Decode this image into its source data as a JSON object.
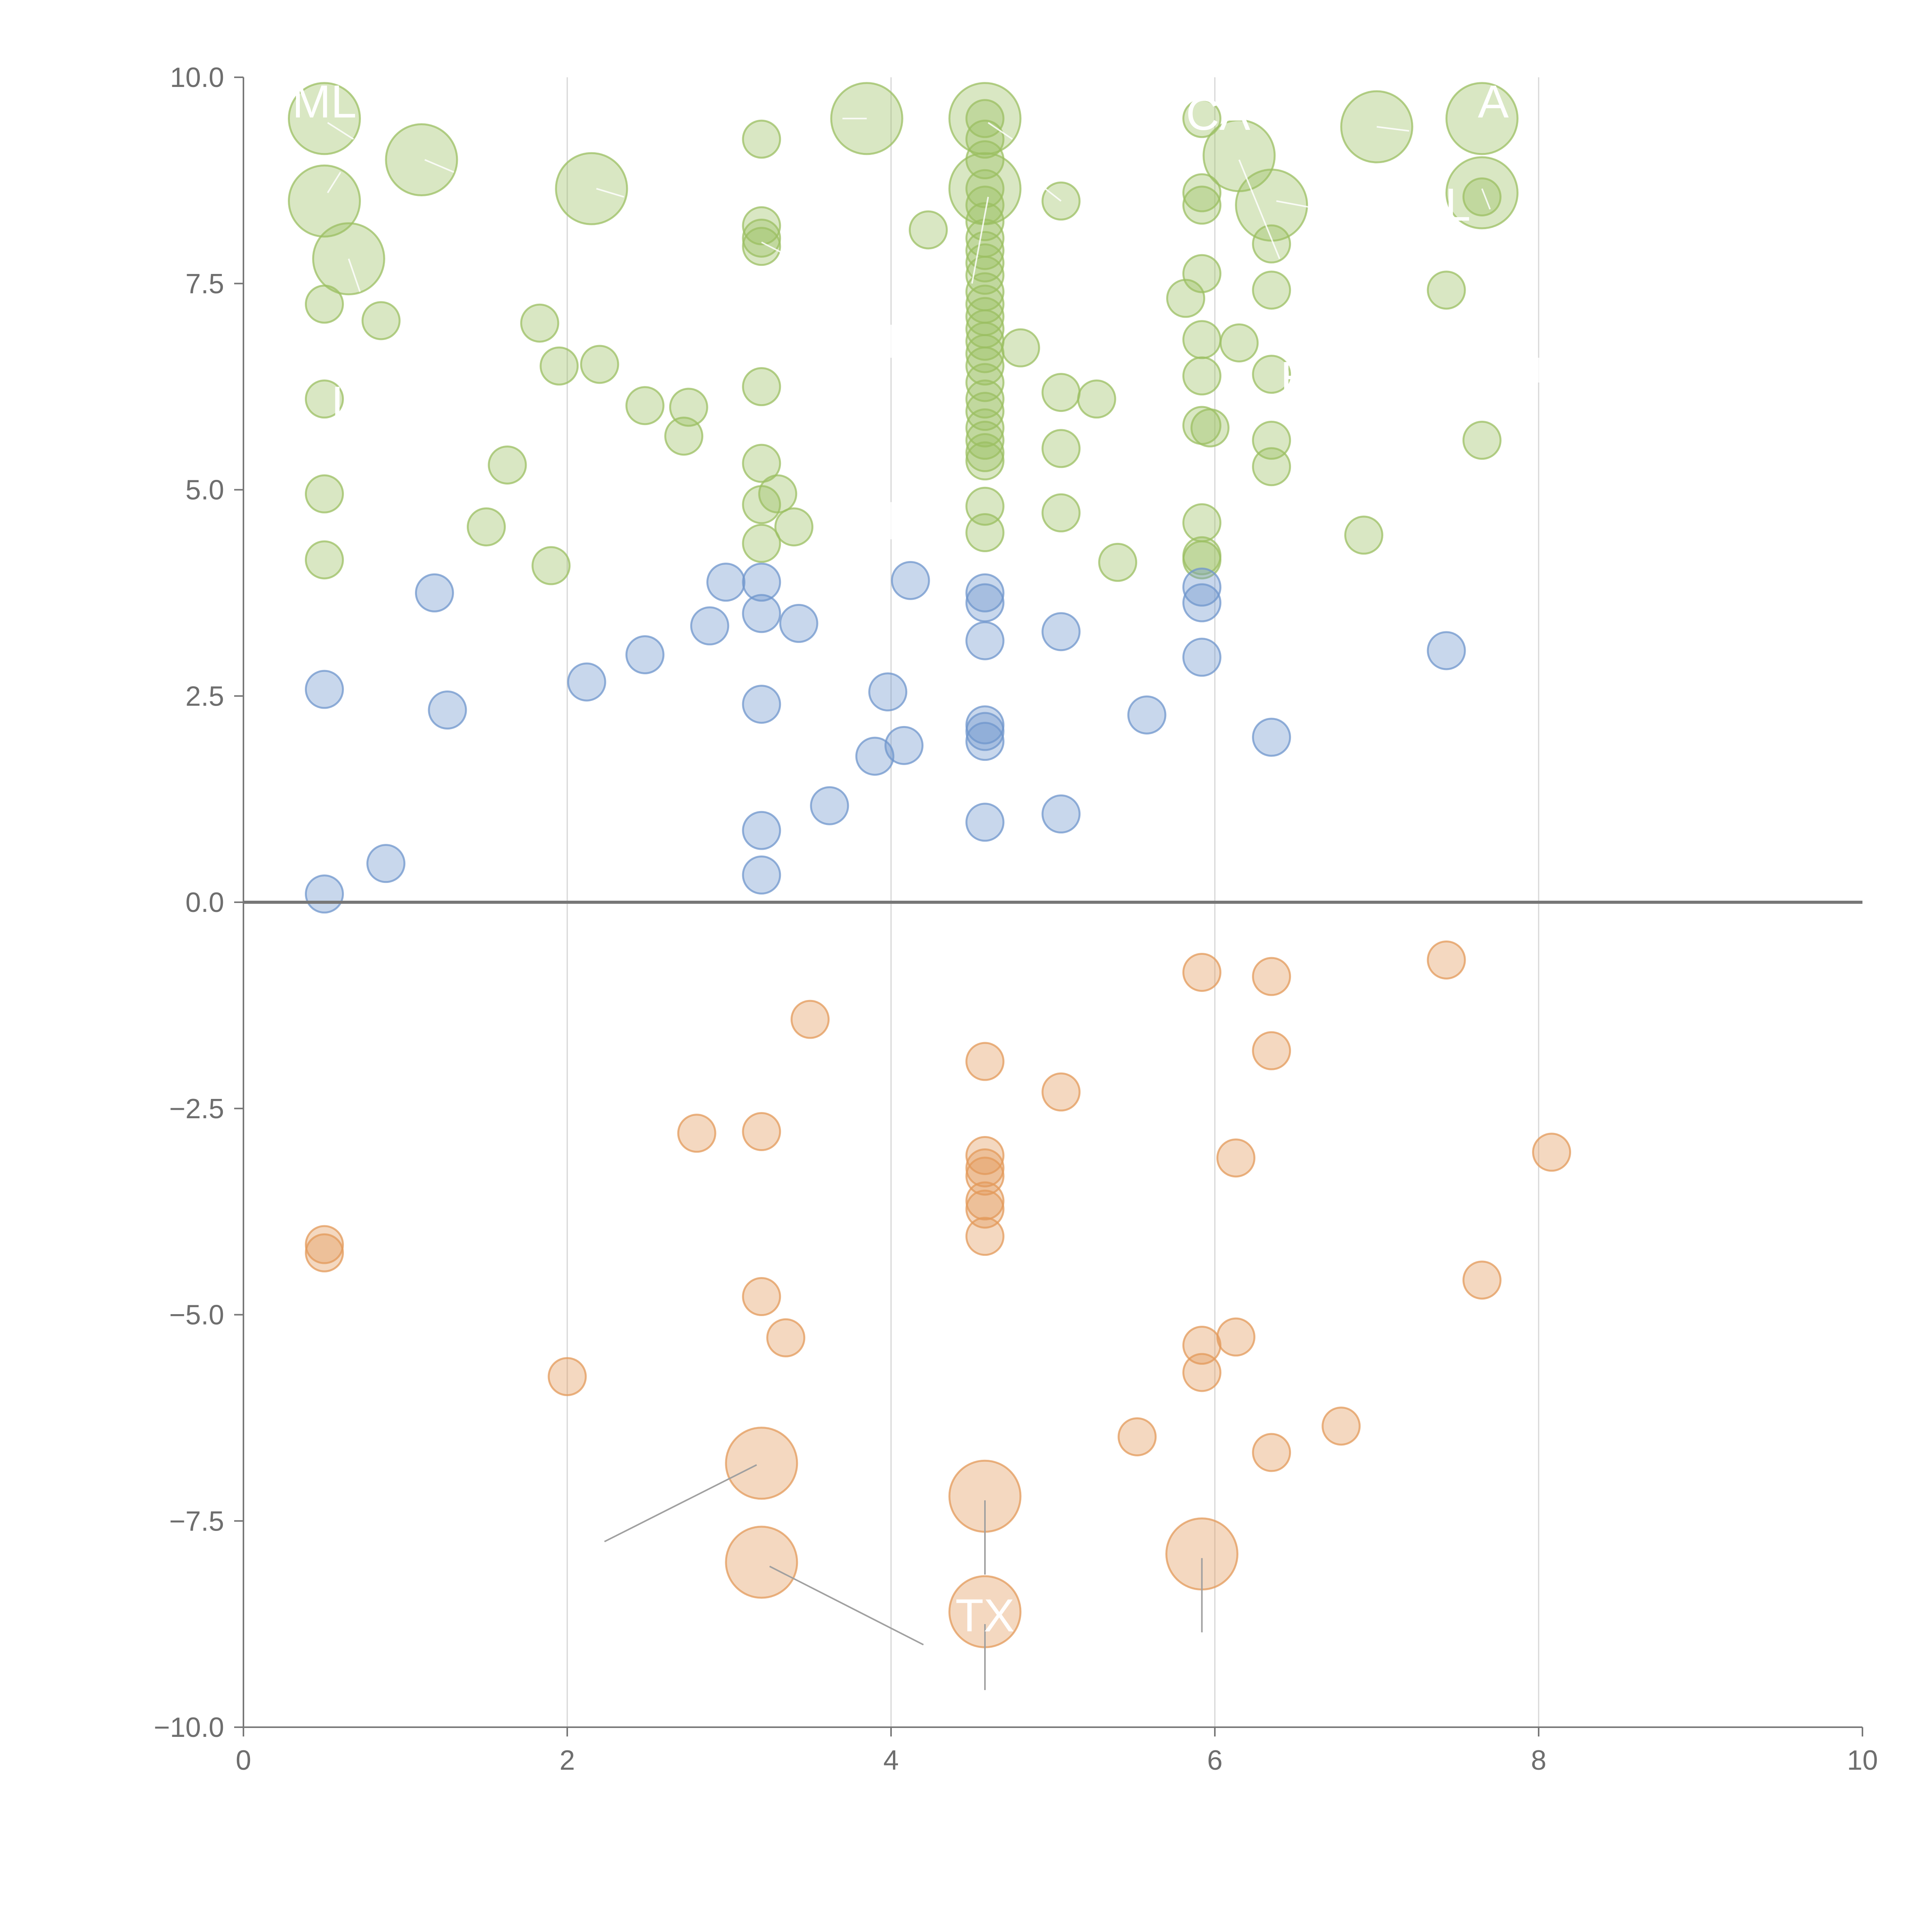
{
  "chart_data": {
    "type": "scatter",
    "subtype": "bubble",
    "title": "",
    "xlabel": "",
    "ylabel": "",
    "xlim": [
      0,
      10
    ],
    "ylim": [
      -10,
      10
    ],
    "x_ticks": [
      0,
      2,
      4,
      6,
      8,
      10
    ],
    "x_tick_labels": [
      "0",
      "2",
      "4",
      "6",
      "8",
      "10"
    ],
    "y_ticks": [
      -10,
      -7.5,
      -5,
      -2.5,
      0,
      2.5,
      5,
      7.5,
      10
    ],
    "y_tick_labels": [
      "−10.0",
      "−7.5",
      "−5.0",
      "−2.5",
      "0.0",
      "2.5",
      "5.0",
      "7.5",
      "10.0"
    ],
    "vertical_grid_at": [
      2,
      4,
      6,
      8
    ],
    "zero_line": 0,
    "colors": {
      "green": "#9bbf62",
      "blue": "#6f95cc",
      "orange": "#e3995a",
      "axis": "#777777",
      "grid": "#d6d6d6",
      "label": "#ffffff"
    },
    "series": [
      {
        "name": "green",
        "color": "#9bbf62",
        "points": [
          {
            "x": 0.5,
            "y": 9.5,
            "s": 2
          },
          {
            "x": 0.5,
            "y": 8.5,
            "s": 2
          },
          {
            "x": 0.65,
            "y": 7.8,
            "s": 2
          },
          {
            "x": 1.1,
            "y": 9.0,
            "s": 2
          },
          {
            "x": 2.15,
            "y": 8.65,
            "s": 2
          },
          {
            "x": 3.85,
            "y": 9.5,
            "s": 2
          },
          {
            "x": 4.58,
            "y": 9.5,
            "s": 2
          },
          {
            "x": 4.58,
            "y": 8.65,
            "s": 2
          },
          {
            "x": 6.15,
            "y": 9.05,
            "s": 2
          },
          {
            "x": 6.35,
            "y": 8.45,
            "s": 2
          },
          {
            "x": 7.0,
            "y": 9.4,
            "s": 2
          },
          {
            "x": 7.65,
            "y": 9.5,
            "s": 2
          },
          {
            "x": 7.65,
            "y": 8.6,
            "s": 2
          },
          {
            "x": 0.5,
            "y": 7.25,
            "s": 1
          },
          {
            "x": 0.85,
            "y": 7.05,
            "s": 1
          },
          {
            "x": 0.5,
            "y": 6.1,
            "s": 1
          },
          {
            "x": 0.5,
            "y": 4.95,
            "s": 1
          },
          {
            "x": 0.5,
            "y": 4.15,
            "s": 1
          },
          {
            "x": 1.5,
            "y": 4.55,
            "s": 1
          },
          {
            "x": 1.63,
            "y": 5.3,
            "s": 1
          },
          {
            "x": 1.83,
            "y": 7.02,
            "s": 1
          },
          {
            "x": 1.9,
            "y": 4.08,
            "s": 1
          },
          {
            "x": 1.95,
            "y": 6.5,
            "s": 1
          },
          {
            "x": 2.2,
            "y": 6.52,
            "s": 1
          },
          {
            "x": 2.48,
            "y": 6.02,
            "s": 1
          },
          {
            "x": 2.72,
            "y": 5.65,
            "s": 1
          },
          {
            "x": 2.75,
            "y": 6.0,
            "s": 1
          },
          {
            "x": 3.2,
            "y": 9.25,
            "s": 1
          },
          {
            "x": 3.2,
            "y": 8.2,
            "s": 1
          },
          {
            "x": 3.2,
            "y": 8.05,
            "s": 1
          },
          {
            "x": 3.2,
            "y": 7.95,
            "s": 1
          },
          {
            "x": 3.2,
            "y": 6.25,
            "s": 1
          },
          {
            "x": 3.2,
            "y": 5.32,
            "s": 1
          },
          {
            "x": 3.2,
            "y": 4.82,
            "s": 1
          },
          {
            "x": 3.2,
            "y": 4.35,
            "s": 1
          },
          {
            "x": 3.3,
            "y": 4.95,
            "s": 1
          },
          {
            "x": 3.4,
            "y": 4.55,
            "s": 1
          },
          {
            "x": 4.23,
            "y": 8.15,
            "s": 1
          },
          {
            "x": 4.58,
            "y": 9.5,
            "s": 1
          },
          {
            "x": 4.58,
            "y": 9.25,
            "s": 1
          },
          {
            "x": 4.58,
            "y": 9.0,
            "s": 1
          },
          {
            "x": 4.58,
            "y": 8.65,
            "s": 1
          },
          {
            "x": 4.58,
            "y": 8.45,
            "s": 1
          },
          {
            "x": 4.58,
            "y": 8.25,
            "s": 1
          },
          {
            "x": 4.58,
            "y": 8.05,
            "s": 1
          },
          {
            "x": 4.58,
            "y": 7.9,
            "s": 1
          },
          {
            "x": 4.58,
            "y": 7.75,
            "s": 1
          },
          {
            "x": 4.58,
            "y": 7.6,
            "s": 1
          },
          {
            "x": 4.58,
            "y": 7.4,
            "s": 1
          },
          {
            "x": 4.58,
            "y": 7.25,
            "s": 1
          },
          {
            "x": 4.58,
            "y": 7.1,
            "s": 1
          },
          {
            "x": 4.58,
            "y": 6.95,
            "s": 1
          },
          {
            "x": 4.58,
            "y": 6.8,
            "s": 1
          },
          {
            "x": 4.58,
            "y": 6.65,
            "s": 1
          },
          {
            "x": 4.58,
            "y": 6.5,
            "s": 1
          },
          {
            "x": 4.58,
            "y": 6.3,
            "s": 1
          },
          {
            "x": 4.58,
            "y": 6.1,
            "s": 1
          },
          {
            "x": 4.58,
            "y": 5.95,
            "s": 1
          },
          {
            "x": 4.58,
            "y": 5.75,
            "s": 1
          },
          {
            "x": 4.58,
            "y": 5.6,
            "s": 1
          },
          {
            "x": 4.58,
            "y": 5.45,
            "s": 1
          },
          {
            "x": 4.58,
            "y": 5.35,
            "s": 1
          },
          {
            "x": 4.58,
            "y": 4.8,
            "s": 1
          },
          {
            "x": 4.58,
            "y": 4.48,
            "s": 1
          },
          {
            "x": 4.8,
            "y": 6.72,
            "s": 1
          },
          {
            "x": 5.05,
            "y": 8.5,
            "s": 1
          },
          {
            "x": 5.05,
            "y": 6.18,
            "s": 1
          },
          {
            "x": 5.05,
            "y": 5.5,
            "s": 1
          },
          {
            "x": 5.05,
            "y": 4.72,
            "s": 1
          },
          {
            "x": 5.27,
            "y": 6.1,
            "s": 1
          },
          {
            "x": 5.4,
            "y": 4.12,
            "s": 1
          },
          {
            "x": 5.82,
            "y": 7.32,
            "s": 1
          },
          {
            "x": 5.92,
            "y": 9.5,
            "s": 1
          },
          {
            "x": 5.92,
            "y": 8.6,
            "s": 1
          },
          {
            "x": 5.92,
            "y": 8.45,
            "s": 1
          },
          {
            "x": 5.92,
            "y": 7.62,
            "s": 1
          },
          {
            "x": 5.92,
            "y": 6.82,
            "s": 1
          },
          {
            "x": 5.92,
            "y": 6.38,
            "s": 1
          },
          {
            "x": 5.92,
            "y": 5.78,
            "s": 1
          },
          {
            "x": 5.97,
            "y": 5.75,
            "s": 1
          },
          {
            "x": 5.92,
            "y": 4.6,
            "s": 1
          },
          {
            "x": 5.92,
            "y": 4.2,
            "s": 1
          },
          {
            "x": 5.92,
            "y": 4.15,
            "s": 1
          },
          {
            "x": 6.15,
            "y": 6.78,
            "s": 1
          },
          {
            "x": 6.35,
            "y": 7.98,
            "s": 1
          },
          {
            "x": 6.35,
            "y": 7.42,
            "s": 1
          },
          {
            "x": 6.35,
            "y": 6.4,
            "s": 1
          },
          {
            "x": 6.35,
            "y": 5.6,
            "s": 1
          },
          {
            "x": 6.35,
            "y": 5.28,
            "s": 1
          },
          {
            "x": 6.92,
            "y": 4.45,
            "s": 1
          },
          {
            "x": 7.43,
            "y": 7.42,
            "s": 1
          },
          {
            "x": 7.65,
            "y": 8.55,
            "s": 1
          },
          {
            "x": 7.65,
            "y": 5.6,
            "s": 1
          }
        ]
      },
      {
        "name": "blue",
        "color": "#6f95cc",
        "points": [
          {
            "x": 0.5,
            "y": 0.1,
            "s": 1
          },
          {
            "x": 0.88,
            "y": 0.47,
            "s": 1
          },
          {
            "x": 0.5,
            "y": 2.58,
            "s": 1
          },
          {
            "x": 1.18,
            "y": 3.75,
            "s": 1
          },
          {
            "x": 1.26,
            "y": 2.33,
            "s": 1
          },
          {
            "x": 2.12,
            "y": 2.67,
            "s": 1
          },
          {
            "x": 2.48,
            "y": 3.0,
            "s": 1
          },
          {
            "x": 2.88,
            "y": 3.35,
            "s": 1
          },
          {
            "x": 2.98,
            "y": 3.88,
            "s": 1
          },
          {
            "x": 3.2,
            "y": 3.88,
            "s": 1
          },
          {
            "x": 3.2,
            "y": 3.5,
            "s": 1
          },
          {
            "x": 3.2,
            "y": 2.4,
            "s": 1
          },
          {
            "x": 3.2,
            "y": 0.87,
            "s": 1
          },
          {
            "x": 3.2,
            "y": 0.33,
            "s": 1
          },
          {
            "x": 3.43,
            "y": 3.38,
            "s": 1
          },
          {
            "x": 3.62,
            "y": 1.17,
            "s": 1
          },
          {
            "x": 3.9,
            "y": 1.77,
            "s": 1
          },
          {
            "x": 3.98,
            "y": 2.55,
            "s": 1
          },
          {
            "x": 4.08,
            "y": 1.9,
            "s": 1
          },
          {
            "x": 4.12,
            "y": 3.9,
            "s": 1
          },
          {
            "x": 4.58,
            "y": 3.75,
            "s": 1
          },
          {
            "x": 4.58,
            "y": 3.63,
            "s": 1
          },
          {
            "x": 4.58,
            "y": 3.17,
            "s": 1
          },
          {
            "x": 4.58,
            "y": 2.15,
            "s": 1
          },
          {
            "x": 4.58,
            "y": 2.07,
            "s": 1
          },
          {
            "x": 4.58,
            "y": 1.95,
            "s": 1
          },
          {
            "x": 4.58,
            "y": 0.97,
            "s": 1
          },
          {
            "x": 5.05,
            "y": 3.28,
            "s": 1
          },
          {
            "x": 5.05,
            "y": 1.07,
            "s": 1
          },
          {
            "x": 5.58,
            "y": 2.27,
            "s": 1
          },
          {
            "x": 5.92,
            "y": 3.82,
            "s": 1
          },
          {
            "x": 5.92,
            "y": 3.63,
            "s": 1
          },
          {
            "x": 5.92,
            "y": 2.97,
            "s": 1
          },
          {
            "x": 6.35,
            "y": 2.0,
            "s": 1
          },
          {
            "x": 7.43,
            "y": 3.05,
            "s": 1
          }
        ]
      },
      {
        "name": "orange",
        "color": "#e3995a",
        "points": [
          {
            "x": 0.5,
            "y": -4.15,
            "s": 1
          },
          {
            "x": 0.5,
            "y": -4.25,
            "s": 1
          },
          {
            "x": 2.0,
            "y": -5.75,
            "s": 1
          },
          {
            "x": 2.8,
            "y": -2.8,
            "s": 1
          },
          {
            "x": 3.2,
            "y": -2.78,
            "s": 1
          },
          {
            "x": 3.2,
            "y": -4.78,
            "s": 1
          },
          {
            "x": 3.35,
            "y": -5.28,
            "s": 1
          },
          {
            "x": 3.5,
            "y": -1.42,
            "s": 1
          },
          {
            "x": 4.58,
            "y": -1.93,
            "s": 1
          },
          {
            "x": 4.58,
            "y": -3.07,
            "s": 1
          },
          {
            "x": 4.58,
            "y": -3.22,
            "s": 1
          },
          {
            "x": 4.58,
            "y": -3.32,
            "s": 1
          },
          {
            "x": 4.58,
            "y": -3.62,
            "s": 1
          },
          {
            "x": 4.58,
            "y": -3.72,
            "s": 1
          },
          {
            "x": 4.58,
            "y": -4.05,
            "s": 1
          },
          {
            "x": 5.05,
            "y": -2.3,
            "s": 1
          },
          {
            "x": 5.52,
            "y": -6.48,
            "s": 1
          },
          {
            "x": 5.92,
            "y": -0.85,
            "s": 1
          },
          {
            "x": 5.92,
            "y": -5.37,
            "s": 1
          },
          {
            "x": 5.92,
            "y": -5.7,
            "s": 1
          },
          {
            "x": 6.13,
            "y": -3.1,
            "s": 1
          },
          {
            "x": 6.13,
            "y": -5.27,
            "s": 1
          },
          {
            "x": 6.35,
            "y": -0.9,
            "s": 1
          },
          {
            "x": 6.35,
            "y": -1.8,
            "s": 1
          },
          {
            "x": 6.35,
            "y": -6.67,
            "s": 1
          },
          {
            "x": 6.78,
            "y": -6.35,
            "s": 1
          },
          {
            "x": 7.43,
            "y": -0.7,
            "s": 1
          },
          {
            "x": 7.65,
            "y": -4.58,
            "s": 1
          },
          {
            "x": 8.08,
            "y": -3.03,
            "s": 1
          },
          {
            "x": 3.2,
            "y": -6.8,
            "s": 2
          },
          {
            "x": 3.2,
            "y": -8.0,
            "s": 2
          },
          {
            "x": 4.58,
            "y": -7.2,
            "s": 2
          },
          {
            "x": 4.58,
            "y": -8.6,
            "s": 2
          },
          {
            "x": 5.92,
            "y": -7.9,
            "s": 2
          }
        ]
      }
    ],
    "labels": [
      {
        "text": "ML",
        "x": 0.5,
        "y": 9.7,
        "x2": 0.62,
        "y2": 9.5
      },
      {
        "text": "A",
        "x": 7.72,
        "y": 9.7
      },
      {
        "text": "CA",
        "x": 6.02,
        "y": 9.55
      },
      {
        "text": "L",
        "x": 1.0,
        "y": 7.85
      },
      {
        "text": "I",
        "x": 0.58,
        "y": 6.05
      },
      {
        "text": "E",
        "x": 6.5,
        "y": 6.35
      },
      {
        "text": "L",
        "x": 7.5,
        "y": 8.45
      },
      {
        "text": "TX",
        "x": 4.58,
        "y": -8.65
      }
    ],
    "leaders": [
      {
        "x1": 2.23,
        "y1": -7.75,
        "x2": 3.17,
        "y2": -6.82,
        "tone": "gray"
      },
      {
        "x1": 3.25,
        "y1": -8.05,
        "x2": 4.2,
        "y2": -9.0,
        "tone": "gray"
      },
      {
        "x1": 4.58,
        "y1": -7.25,
        "x2": 4.58,
        "y2": -8.15,
        "tone": "gray"
      },
      {
        "x1": 4.58,
        "y1": -8.75,
        "x2": 4.58,
        "y2": -9.55,
        "tone": "gray"
      },
      {
        "x1": 5.92,
        "y1": -7.95,
        "x2": 5.92,
        "y2": -8.85,
        "tone": "gray"
      },
      {
        "x1": 0.52,
        "y1": 9.45,
        "x2": 0.68,
        "y2": 9.25,
        "tone": "light"
      },
      {
        "x1": 0.52,
        "y1": 8.6,
        "x2": 0.6,
        "y2": 8.85,
        "tone": "light"
      },
      {
        "x1": 0.65,
        "y1": 7.8,
        "x2": 0.72,
        "y2": 7.4,
        "tone": "light"
      },
      {
        "x1": 1.12,
        "y1": 9.0,
        "x2": 1.3,
        "y2": 8.85,
        "tone": "light"
      },
      {
        "x1": 2.18,
        "y1": 8.65,
        "x2": 2.35,
        "y2": 8.55,
        "tone": "light"
      },
      {
        "x1": 3.85,
        "y1": 9.5,
        "x2": 3.7,
        "y2": 9.5,
        "tone": "light"
      },
      {
        "x1": 4.6,
        "y1": 9.45,
        "x2": 4.75,
        "y2": 9.25,
        "tone": "light"
      },
      {
        "x1": 4.6,
        "y1": 8.55,
        "x2": 4.5,
        "y2": 7.5,
        "tone": "light"
      },
      {
        "x1": 5.05,
        "y1": 8.5,
        "x2": 4.92,
        "y2": 8.7,
        "tone": "light"
      },
      {
        "x1": 6.15,
        "y1": 9.0,
        "x2": 6.4,
        "y2": 7.8,
        "tone": "light"
      },
      {
        "x1": 6.38,
        "y1": 8.5,
        "x2": 6.6,
        "y2": 8.42,
        "tone": "light"
      },
      {
        "x1": 7.0,
        "y1": 9.4,
        "x2": 7.2,
        "y2": 9.35,
        "tone": "light"
      },
      {
        "x1": 7.65,
        "y1": 8.65,
        "x2": 7.7,
        "y2": 8.4,
        "tone": "light"
      },
      {
        "x1": 3.2,
        "y1": 8.0,
        "x2": 3.35,
        "y2": 7.85,
        "tone": "light"
      },
      {
        "x1": 4.0,
        "y1": 4.85,
        "x2": 4.0,
        "y2": 4.4,
        "tone": "light"
      },
      {
        "x1": 4.0,
        "y1": 6.6,
        "x2": 4.0,
        "y2": 7.0,
        "tone": "light"
      },
      {
        "x1": 8.0,
        "y1": 6.6,
        "x2": 8.0,
        "y2": 6.3,
        "tone": "light"
      }
    ]
  }
}
